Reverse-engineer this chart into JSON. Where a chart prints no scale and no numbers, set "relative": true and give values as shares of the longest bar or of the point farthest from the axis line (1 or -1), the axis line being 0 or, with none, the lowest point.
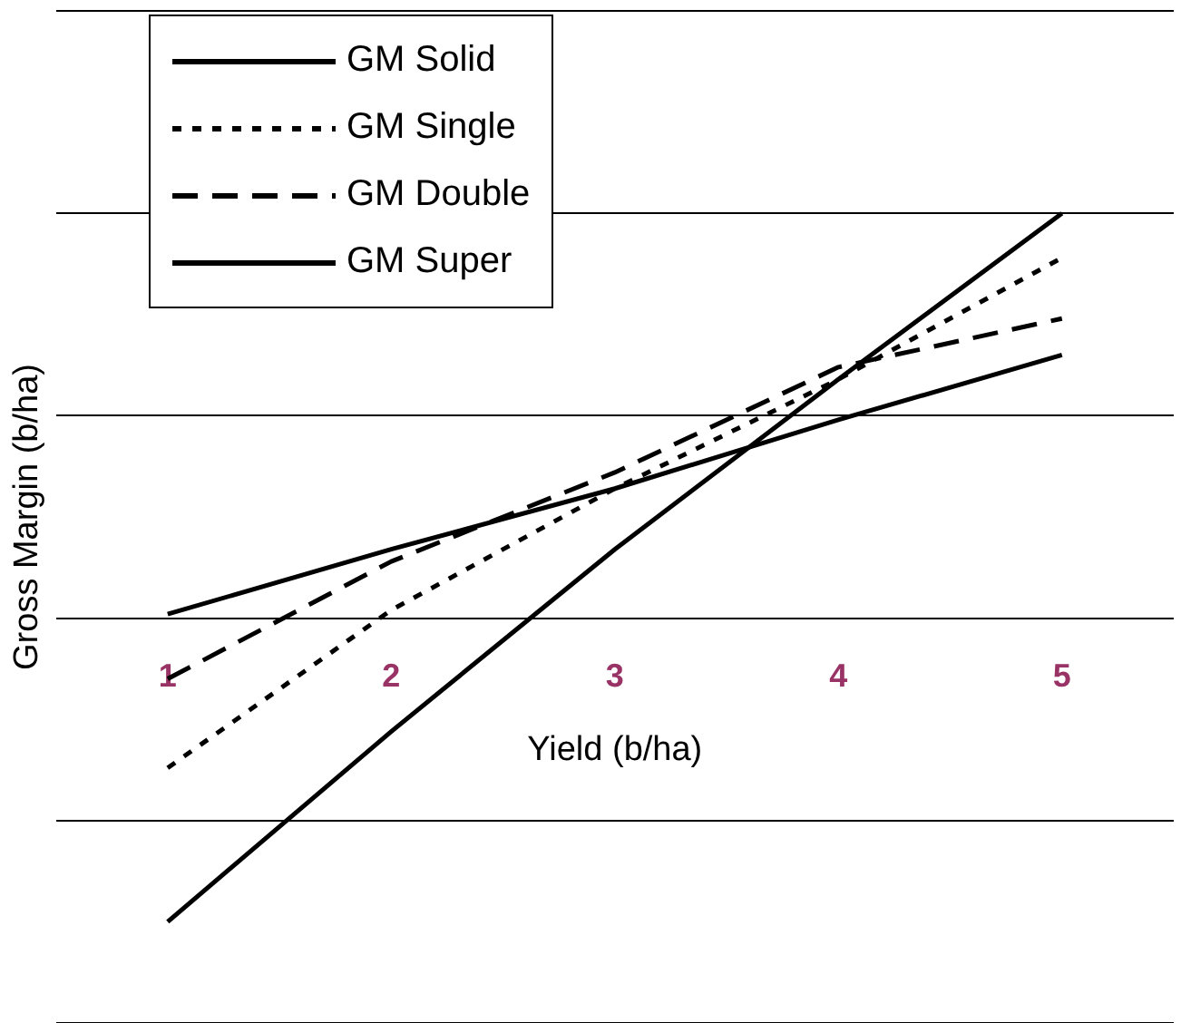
{
  "chart_data": {
    "type": "line",
    "xlabel": "Yield (b/ha)",
    "ylabel": "Gross Margin (b/ha)",
    "categories": [
      "1",
      "2",
      "3",
      "4",
      "5"
    ],
    "relative": true,
    "grid": "y",
    "legend": "top left",
    "tick_labels": "x",
    "marker": "none",
    "series": [
      {
        "name": "GM Solid",
        "color": "#000000",
        "line_style": "solid",
        "values": [
          -0.75,
          -0.28,
          0.17,
          0.59,
          1
        ]
      },
      {
        "name": "GM Single",
        "color": "#000000",
        "line_style": "dotted",
        "values": [
          -0.37,
          0.02,
          0.32,
          0.59,
          0.89
        ]
      },
      {
        "name": "GM Double",
        "color": "#000000",
        "line_style": "dashed",
        "values": [
          -0.15,
          0.14,
          0.36,
          0.62,
          0.74
        ]
      },
      {
        "name": "GM Super",
        "color": "#000000",
        "line_style": "solid",
        "values": [
          0.01,
          0.17,
          0.32,
          0.49,
          0.65
        ]
      }
    ]
  }
}
